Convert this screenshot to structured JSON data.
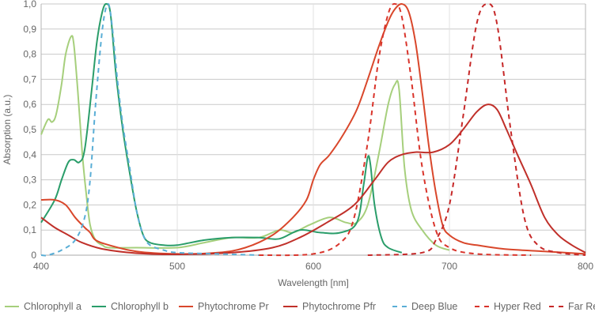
{
  "chart_data": {
    "type": "line",
    "title": "",
    "xlabel": "Wavelength [nm]",
    "ylabel": "Absorption (a.u.)",
    "xlim": [
      400,
      800
    ],
    "ylim": [
      0,
      1.0
    ],
    "xticks": [
      400,
      500,
      600,
      700,
      800
    ],
    "xtick_labels": [
      "400",
      "500",
      "600",
      "700",
      "800"
    ],
    "yticks": [
      0,
      0.1,
      0.2,
      0.3,
      0.4,
      0.5,
      0.6,
      0.7,
      0.8,
      0.9,
      1.0
    ],
    "ytick_labels": [
      "0",
      "0,1",
      "0,2",
      "0,3",
      "0,4",
      "0,5",
      "0,6",
      "0,7",
      "0,8",
      "0,9",
      "1,0"
    ],
    "grid": "horizontal and vertical",
    "legend_position": "bottom",
    "series": [
      {
        "name": "Chlorophyll a",
        "color": "#a6cf7c",
        "dash": false,
        "points": [
          [
            400,
            0.48
          ],
          [
            405,
            0.54
          ],
          [
            408,
            0.53
          ],
          [
            411,
            0.56
          ],
          [
            415,
            0.68
          ],
          [
            418,
            0.8
          ],
          [
            422,
            0.87
          ],
          [
            424,
            0.84
          ],
          [
            427,
            0.65
          ],
          [
            430,
            0.42
          ],
          [
            433,
            0.25
          ],
          [
            436,
            0.12
          ],
          [
            440,
            0.06
          ],
          [
            445,
            0.04
          ],
          [
            450,
            0.03
          ],
          [
            470,
            0.03
          ],
          [
            500,
            0.03
          ],
          [
            520,
            0.05
          ],
          [
            540,
            0.07
          ],
          [
            560,
            0.07
          ],
          [
            575,
            0.1
          ],
          [
            585,
            0.09
          ],
          [
            597,
            0.12
          ],
          [
            612,
            0.15
          ],
          [
            624,
            0.13
          ],
          [
            632,
            0.13
          ],
          [
            640,
            0.2
          ],
          [
            648,
            0.4
          ],
          [
            655,
            0.6
          ],
          [
            660,
            0.68
          ],
          [
            663,
            0.66
          ],
          [
            667,
            0.35
          ],
          [
            672,
            0.18
          ],
          [
            680,
            0.1
          ],
          [
            690,
            0.04
          ],
          [
            700,
            0.02
          ]
        ]
      },
      {
        "name": "Chlorophyll b",
        "color": "#2a9d6a",
        "dash": false,
        "points": [
          [
            400,
            0.13
          ],
          [
            410,
            0.22
          ],
          [
            415,
            0.3
          ],
          [
            420,
            0.37
          ],
          [
            424,
            0.38
          ],
          [
            428,
            0.37
          ],
          [
            432,
            0.42
          ],
          [
            437,
            0.65
          ],
          [
            441,
            0.85
          ],
          [
            445,
            0.97
          ],
          [
            448,
            1.0
          ],
          [
            451,
            0.96
          ],
          [
            455,
            0.72
          ],
          [
            460,
            0.5
          ],
          [
            465,
            0.33
          ],
          [
            470,
            0.18
          ],
          [
            475,
            0.08
          ],
          [
            480,
            0.05
          ],
          [
            490,
            0.04
          ],
          [
            500,
            0.04
          ],
          [
            520,
            0.06
          ],
          [
            540,
            0.07
          ],
          [
            560,
            0.07
          ],
          [
            575,
            0.065
          ],
          [
            590,
            0.1
          ],
          [
            605,
            0.09
          ],
          [
            620,
            0.09
          ],
          [
            632,
            0.13
          ],
          [
            637,
            0.28
          ],
          [
            640,
            0.39
          ],
          [
            642,
            0.36
          ],
          [
            645,
            0.2
          ],
          [
            650,
            0.07
          ],
          [
            655,
            0.03
          ],
          [
            665,
            0.01
          ]
        ]
      },
      {
        "name": "Phytochrome Pr",
        "color": "#d9472b",
        "dash": false,
        "points": [
          [
            400,
            0.22
          ],
          [
            410,
            0.22
          ],
          [
            418,
            0.2
          ],
          [
            425,
            0.15
          ],
          [
            432,
            0.11
          ],
          [
            436,
            0.09
          ],
          [
            440,
            0.06
          ],
          [
            450,
            0.04
          ],
          [
            470,
            0.015
          ],
          [
            500,
            0.005
          ],
          [
            530,
            0.01
          ],
          [
            550,
            0.03
          ],
          [
            570,
            0.08
          ],
          [
            585,
            0.15
          ],
          [
            595,
            0.22
          ],
          [
            600,
            0.3
          ],
          [
            605,
            0.36
          ],
          [
            612,
            0.4
          ],
          [
            622,
            0.48
          ],
          [
            632,
            0.58
          ],
          [
            640,
            0.7
          ],
          [
            648,
            0.83
          ],
          [
            655,
            0.93
          ],
          [
            660,
            0.98
          ],
          [
            665,
            1.0
          ],
          [
            670,
            0.97
          ],
          [
            675,
            0.85
          ],
          [
            680,
            0.65
          ],
          [
            685,
            0.43
          ],
          [
            690,
            0.25
          ],
          [
            695,
            0.12
          ],
          [
            700,
            0.08
          ],
          [
            710,
            0.05
          ],
          [
            720,
            0.04
          ],
          [
            740,
            0.025
          ],
          [
            770,
            0.015
          ],
          [
            800,
            0.005
          ]
        ]
      },
      {
        "name": "Phytochrome Pfr",
        "color": "#c0302a",
        "dash": false,
        "points": [
          [
            400,
            0.15
          ],
          [
            410,
            0.11
          ],
          [
            420,
            0.08
          ],
          [
            430,
            0.05
          ],
          [
            445,
            0.025
          ],
          [
            470,
            0.008
          ],
          [
            500,
            0.003
          ],
          [
            540,
            0.01
          ],
          [
            570,
            0.03
          ],
          [
            590,
            0.07
          ],
          [
            610,
            0.13
          ],
          [
            630,
            0.2
          ],
          [
            645,
            0.3
          ],
          [
            655,
            0.37
          ],
          [
            665,
            0.4
          ],
          [
            675,
            0.41
          ],
          [
            688,
            0.41
          ],
          [
            700,
            0.44
          ],
          [
            710,
            0.5
          ],
          [
            720,
            0.57
          ],
          [
            728,
            0.6
          ],
          [
            735,
            0.58
          ],
          [
            742,
            0.5
          ],
          [
            750,
            0.4
          ],
          [
            760,
            0.28
          ],
          [
            770,
            0.15
          ],
          [
            780,
            0.08
          ],
          [
            790,
            0.04
          ],
          [
            800,
            0.01
          ]
        ]
      },
      {
        "name": "Deep Blue",
        "color": "#5aaed6",
        "dash": true,
        "points": [
          [
            400,
            0
          ],
          [
            405,
            0
          ],
          [
            415,
            0.02
          ],
          [
            425,
            0.06
          ],
          [
            432,
            0.15
          ],
          [
            436,
            0.3
          ],
          [
            440,
            0.6
          ],
          [
            445,
            0.9
          ],
          [
            449,
            1.0
          ],
          [
            452,
            0.92
          ],
          [
            456,
            0.7
          ],
          [
            460,
            0.52
          ],
          [
            465,
            0.35
          ],
          [
            470,
            0.18
          ],
          [
            475,
            0.08
          ],
          [
            480,
            0.04
          ],
          [
            490,
            0.02
          ],
          [
            500,
            0.01
          ],
          [
            530,
            0.005
          ],
          [
            560,
            0
          ]
        ]
      },
      {
        "name": "Hyper Red",
        "color": "#d9342b",
        "dash": true,
        "points": [
          [
            560,
            0
          ],
          [
            600,
            0.005
          ],
          [
            620,
            0.05
          ],
          [
            630,
            0.15
          ],
          [
            640,
            0.45
          ],
          [
            648,
            0.78
          ],
          [
            655,
            0.96
          ],
          [
            660,
            1.0
          ],
          [
            665,
            0.95
          ],
          [
            672,
            0.7
          ],
          [
            680,
            0.35
          ],
          [
            690,
            0.1
          ],
          [
            700,
            0.03
          ],
          [
            720,
            0.005
          ],
          [
            760,
            0
          ]
        ]
      },
      {
        "name": "Far Red",
        "color": "#c62828",
        "dash": true,
        "points": [
          [
            640,
            0
          ],
          [
            680,
            0.01
          ],
          [
            690,
            0.06
          ],
          [
            700,
            0.2
          ],
          [
            710,
            0.55
          ],
          [
            720,
            0.92
          ],
          [
            728,
            1.0
          ],
          [
            735,
            0.92
          ],
          [
            745,
            0.5
          ],
          [
            755,
            0.15
          ],
          [
            765,
            0.04
          ],
          [
            780,
            0.01
          ],
          [
            800,
            0
          ]
        ]
      }
    ]
  }
}
